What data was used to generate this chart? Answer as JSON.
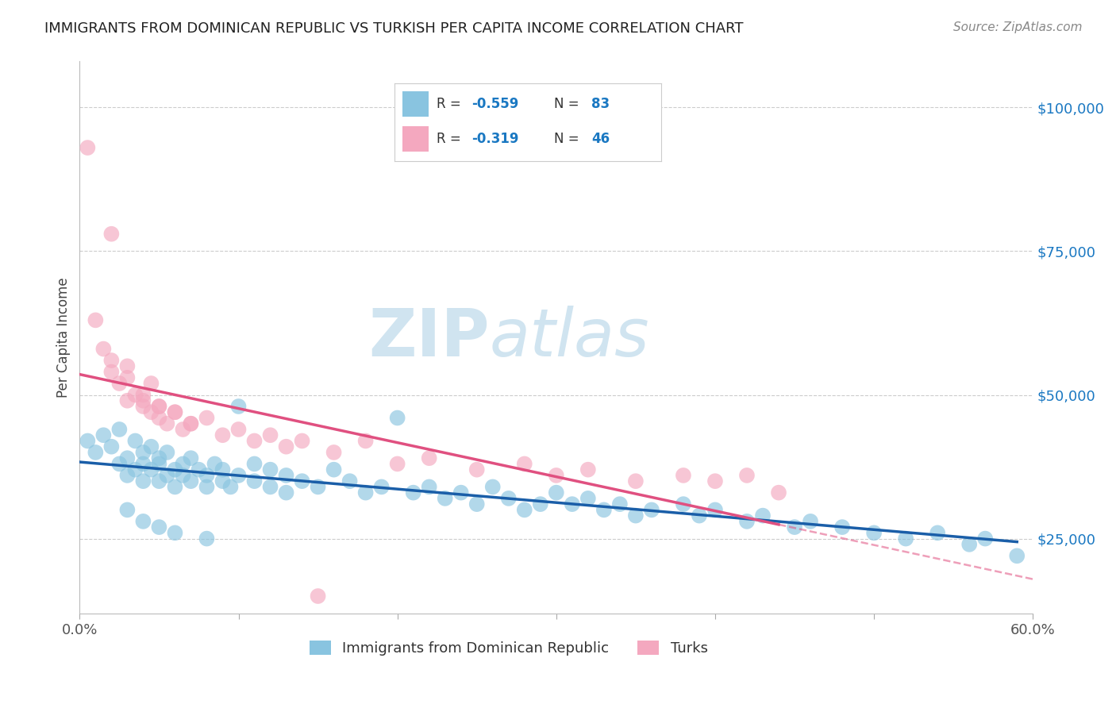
{
  "title": "IMMIGRANTS FROM DOMINICAN REPUBLIC VS TURKISH PER CAPITA INCOME CORRELATION CHART",
  "source": "Source: ZipAtlas.com",
  "ylabel": "Per Capita Income",
  "xlim": [
    0.0,
    0.6
  ],
  "ylim": [
    12000,
    108000
  ],
  "yticks": [
    25000,
    50000,
    75000,
    100000
  ],
  "ytick_labels": [
    "$25,000",
    "$50,000",
    "$75,000",
    "$100,000"
  ],
  "xticks": [
    0.0,
    0.1,
    0.2,
    0.3,
    0.4,
    0.5,
    0.6
  ],
  "xtick_labels": [
    "0.0%",
    "",
    "",
    "",
    "",
    "",
    "60.0%"
  ],
  "color_blue": "#89c4e0",
  "color_pink": "#f4a8bf",
  "color_blue_line": "#1a5ea8",
  "color_pink_line": "#e05080",
  "color_text_blue": "#1a78c2",
  "background": "#ffffff",
  "watermark_zip": "ZIP",
  "watermark_atlas": "atlas",
  "watermark_color": "#d0e4f0",
  "blue_scatter_x": [
    0.005,
    0.01,
    0.015,
    0.02,
    0.025,
    0.025,
    0.03,
    0.03,
    0.035,
    0.035,
    0.04,
    0.04,
    0.04,
    0.045,
    0.045,
    0.05,
    0.05,
    0.05,
    0.055,
    0.055,
    0.06,
    0.06,
    0.065,
    0.065,
    0.07,
    0.07,
    0.075,
    0.08,
    0.08,
    0.085,
    0.09,
    0.09,
    0.095,
    0.1,
    0.1,
    0.11,
    0.11,
    0.12,
    0.12,
    0.13,
    0.13,
    0.14,
    0.15,
    0.16,
    0.17,
    0.18,
    0.19,
    0.2,
    0.21,
    0.22,
    0.23,
    0.24,
    0.25,
    0.26,
    0.27,
    0.28,
    0.29,
    0.3,
    0.31,
    0.32,
    0.33,
    0.34,
    0.35,
    0.36,
    0.38,
    0.39,
    0.4,
    0.42,
    0.43,
    0.45,
    0.46,
    0.48,
    0.5,
    0.52,
    0.54,
    0.56,
    0.57,
    0.59,
    0.03,
    0.04,
    0.05,
    0.06,
    0.08
  ],
  "blue_scatter_y": [
    42000,
    40000,
    43000,
    41000,
    38000,
    44000,
    39000,
    36000,
    42000,
    37000,
    40000,
    35000,
    38000,
    37000,
    41000,
    38000,
    35000,
    39000,
    36000,
    40000,
    37000,
    34000,
    36000,
    38000,
    35000,
    39000,
    37000,
    36000,
    34000,
    38000,
    35000,
    37000,
    34000,
    48000,
    36000,
    38000,
    35000,
    37000,
    34000,
    36000,
    33000,
    35000,
    34000,
    37000,
    35000,
    33000,
    34000,
    46000,
    33000,
    34000,
    32000,
    33000,
    31000,
    34000,
    32000,
    30000,
    31000,
    33000,
    31000,
    32000,
    30000,
    31000,
    29000,
    30000,
    31000,
    29000,
    30000,
    28000,
    29000,
    27000,
    28000,
    27000,
    26000,
    25000,
    26000,
    24000,
    25000,
    22000,
    30000,
    28000,
    27000,
    26000,
    25000
  ],
  "pink_scatter_x": [
    0.005,
    0.01,
    0.015,
    0.02,
    0.02,
    0.025,
    0.03,
    0.03,
    0.035,
    0.04,
    0.04,
    0.045,
    0.045,
    0.05,
    0.05,
    0.055,
    0.06,
    0.065,
    0.07,
    0.08,
    0.09,
    0.1,
    0.11,
    0.12,
    0.13,
    0.14,
    0.16,
    0.18,
    0.2,
    0.22,
    0.25,
    0.28,
    0.3,
    0.32,
    0.35,
    0.38,
    0.4,
    0.42,
    0.44,
    0.02,
    0.03,
    0.04,
    0.05,
    0.06,
    0.07,
    0.15
  ],
  "pink_scatter_y": [
    93000,
    63000,
    58000,
    56000,
    54000,
    52000,
    53000,
    49000,
    50000,
    48000,
    50000,
    47000,
    52000,
    48000,
    46000,
    45000,
    47000,
    44000,
    45000,
    46000,
    43000,
    44000,
    42000,
    43000,
    41000,
    42000,
    40000,
    42000,
    38000,
    39000,
    37000,
    38000,
    36000,
    37000,
    35000,
    36000,
    35000,
    36000,
    33000,
    78000,
    55000,
    49000,
    48000,
    47000,
    45000,
    15000
  ]
}
